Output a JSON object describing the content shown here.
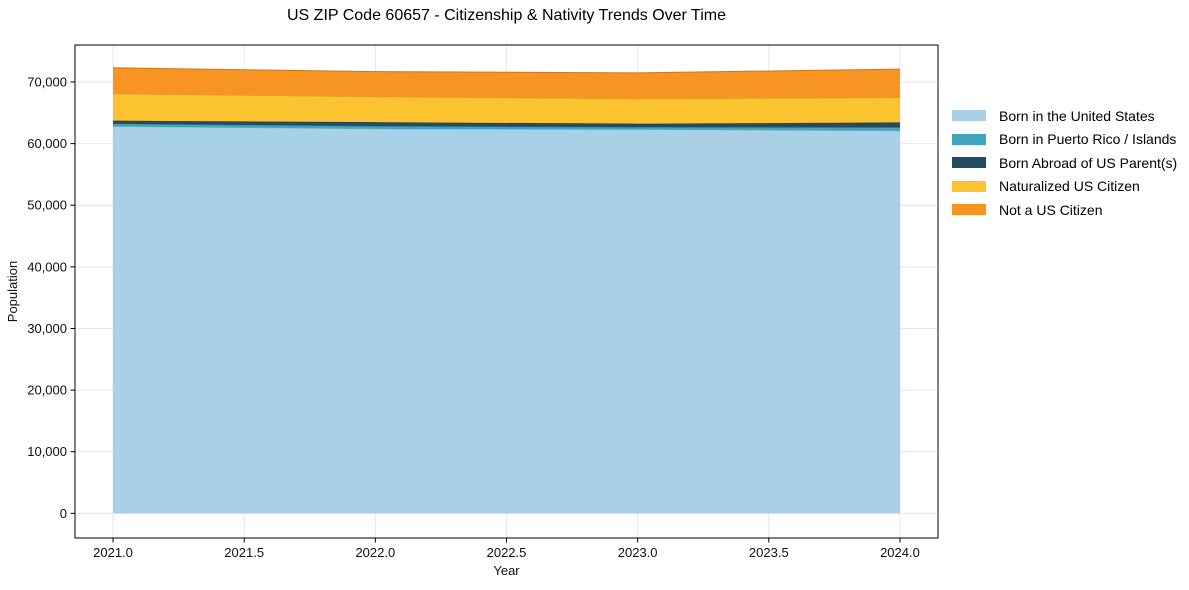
{
  "title": "US ZIP Code 60657 - Citizenship & Nativity Trends Over Time",
  "chart_data": {
    "type": "area",
    "stacked": true,
    "title": "US ZIP Code 60657 - Citizenship & Nativity Trends Over Time",
    "xlabel": "Year",
    "ylabel": "Population",
    "x": [
      2021,
      2022,
      2023,
      2024
    ],
    "series": [
      {
        "name": "Born in the United States",
        "color": "#a8d0e6",
        "values": [
          62800,
          62400,
          62300,
          62100
        ]
      },
      {
        "name": "Born in Puerto Rico / Islands",
        "color": "#41a5bf",
        "values": [
          420,
          430,
          380,
          540
        ]
      },
      {
        "name": "Born Abroad of US Parent(s)",
        "color": "#254b5e",
        "values": [
          500,
          650,
          550,
          800
        ]
      },
      {
        "name": "Naturalized US Citizen",
        "color": "#fcc330",
        "values": [
          4380,
          4150,
          4050,
          4050
        ]
      },
      {
        "name": "Not a US Citizen",
        "color": "#f89422",
        "values": [
          4200,
          4050,
          4200,
          4600
        ]
      }
    ],
    "totals": [
      72300,
      71680,
      71480,
      72090
    ],
    "xticks": [
      2021.0,
      2021.5,
      2022.0,
      2022.5,
      2023.0,
      2023.5,
      2024.0
    ],
    "xtick_labels": [
      "2021.0",
      "2021.5",
      "2022.0",
      "2022.5",
      "2023.0",
      "2023.5",
      "2024.0"
    ],
    "yticks": [
      0,
      10000,
      20000,
      30000,
      40000,
      50000,
      60000,
      70000
    ],
    "ytick_labels": [
      "0",
      "10,000",
      "20,000",
      "30,000",
      "40,000",
      "50,000",
      "60,000",
      "70,000"
    ],
    "xlim": [
      2020.855,
      2024.145
    ],
    "ylim": [
      -4000,
      76000
    ],
    "grid": true,
    "legend_position": "outside-right"
  }
}
